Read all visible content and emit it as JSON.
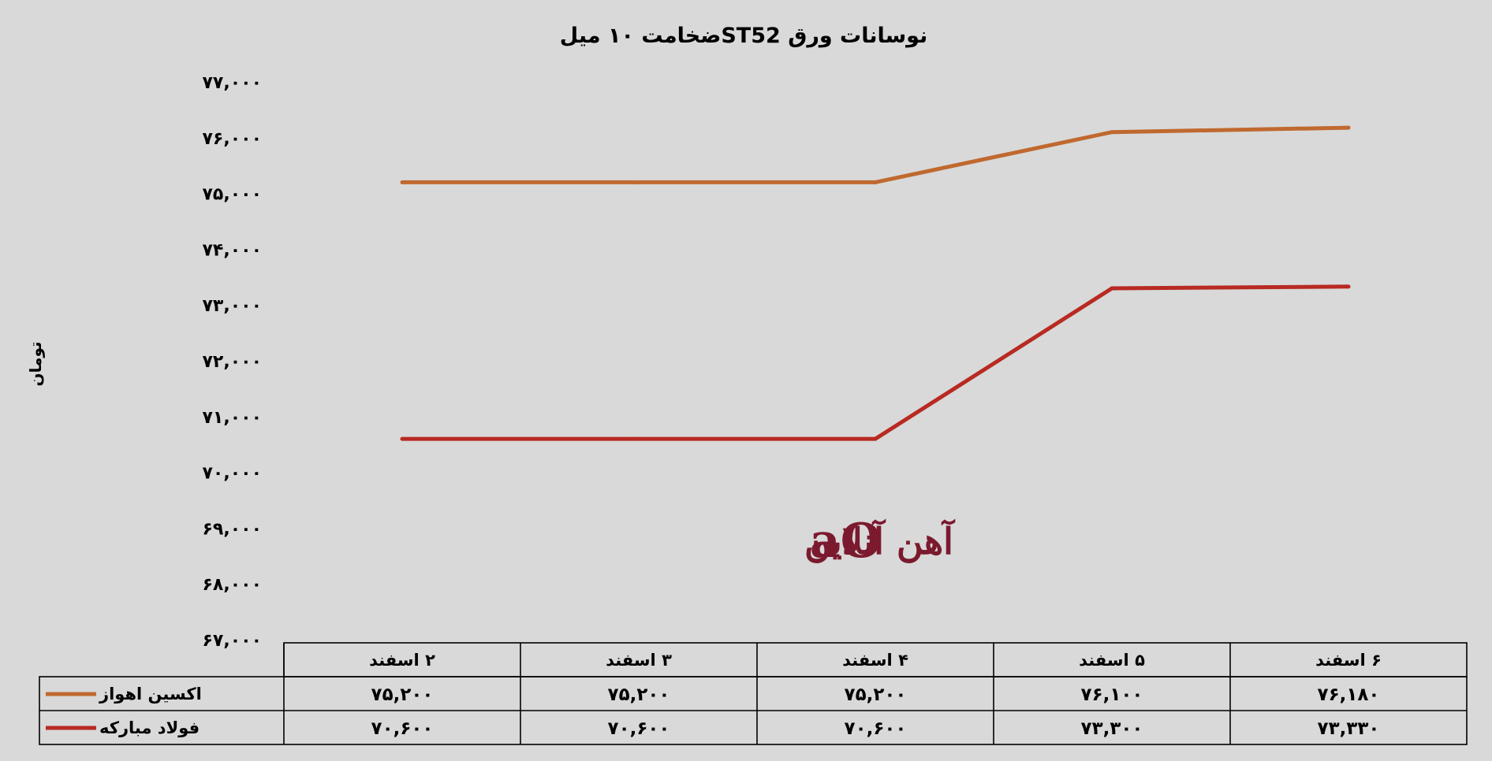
{
  "chart_data": {
    "type": "line",
    "title": "نوسانات ورق  ST52ضخامت ۱۰ میل",
    "ylabel": "تومان",
    "ylim": [
      67000,
      77000
    ],
    "yticks": [
      67000,
      68000,
      69000,
      70000,
      71000,
      72000,
      73000,
      74000,
      75000,
      76000,
      77000
    ],
    "ytick_labels": [
      "۶۷,۰۰۰",
      "۶۸,۰۰۰",
      "۶۹,۰۰۰",
      "۷۰,۰۰۰",
      "۷۱,۰۰۰",
      "۷۲,۰۰۰",
      "۷۳,۰۰۰",
      "۷۴,۰۰۰",
      "۷۵,۰۰۰",
      "۷۶,۰۰۰",
      "۷۷,۰۰۰"
    ],
    "categories": [
      "۲ اسفند",
      "۳ اسفند",
      "۴ اسفند",
      "۵ اسفند",
      "۶ اسفند"
    ],
    "series": [
      {
        "name": "اکسین اهواز",
        "color": "#c0692f",
        "values": [
          75200,
          75200,
          75200,
          76100,
          76180
        ],
        "labels": [
          "۷۵,۲۰۰",
          "۷۵,۲۰۰",
          "۷۵,۲۰۰",
          "۷۶,۱۰۰",
          "۷۶,۱۸۰"
        ]
      },
      {
        "name": "فولاد مبارکه",
        "color": "#b82a22",
        "values": [
          70600,
          70600,
          70600,
          73300,
          73330
        ],
        "labels": [
          "۷۰,۶۰۰",
          "۷۰,۶۰۰",
          "۷۰,۶۰۰",
          "۷۳,۳۰۰",
          "۷۳,۳۳۰"
        ]
      }
    ],
    "grid": false,
    "legend": "data-table-left",
    "data_table": true
  },
  "watermark": {
    "text": "آهن آنلاین",
    "logo_text": "aO",
    "color": "#7b1a2e"
  }
}
